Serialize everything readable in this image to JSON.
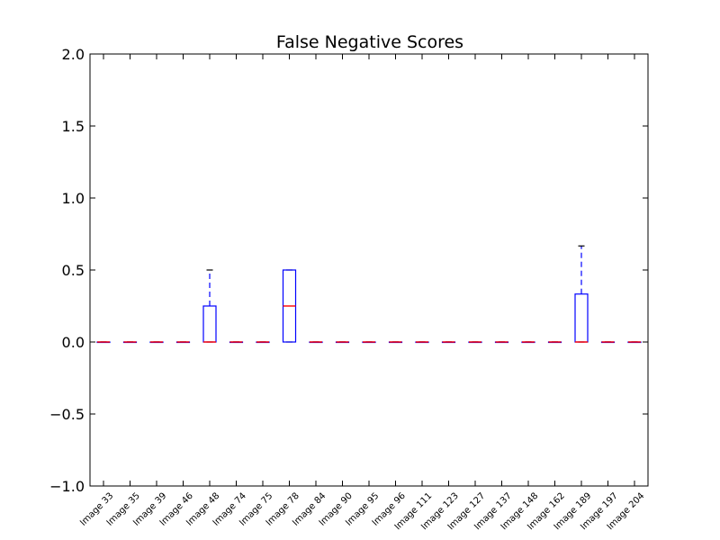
{
  "chart_data": {
    "type": "boxplot",
    "title": "False Negative Scores",
    "xlabel": "",
    "ylabel": "",
    "ylim": [
      -1.0,
      2.0
    ],
    "y_ticks": [
      -1.0,
      -0.5,
      0.0,
      0.5,
      1.0,
      1.5,
      2.0
    ],
    "y_tick_labels": [
      "−1.0",
      "−0.5",
      "0.0",
      "0.5",
      "1.0",
      "1.5",
      "2.0"
    ],
    "grid": false,
    "legend": "none",
    "categories": [
      "Image 33",
      "Image 35",
      "Image 39",
      "Image 46",
      "Image 48",
      "Image 74",
      "Image 75",
      "Image 78",
      "Image 84",
      "Image 90",
      "Image 95",
      "Image 96",
      "Image 111",
      "Image 123",
      "Image 127",
      "Image 137",
      "Image 148",
      "Image 162",
      "Image 189",
      "Image 197",
      "Image 204"
    ],
    "boxes": [
      {
        "whislo": 0,
        "q1": 0,
        "med": 0,
        "q3": 0,
        "whishi": 0
      },
      {
        "whislo": 0,
        "q1": 0,
        "med": 0,
        "q3": 0,
        "whishi": 0
      },
      {
        "whislo": 0,
        "q1": 0,
        "med": 0,
        "q3": 0,
        "whishi": 0
      },
      {
        "whislo": 0,
        "q1": 0,
        "med": 0,
        "q3": 0,
        "whishi": 0
      },
      {
        "whislo": 0,
        "q1": 0,
        "med": 0,
        "q3": 0.25,
        "whishi": 0.5
      },
      {
        "whislo": 0,
        "q1": 0,
        "med": 0,
        "q3": 0,
        "whishi": 0
      },
      {
        "whislo": 0,
        "q1": 0,
        "med": 0,
        "q3": 0,
        "whishi": 0
      },
      {
        "whislo": 0,
        "q1": 0,
        "med": 0.25,
        "q3": 0.5,
        "whishi": 0.5
      },
      {
        "whislo": 0,
        "q1": 0,
        "med": 0,
        "q3": 0,
        "whishi": 0
      },
      {
        "whislo": 0,
        "q1": 0,
        "med": 0,
        "q3": 0,
        "whishi": 0
      },
      {
        "whislo": 0,
        "q1": 0,
        "med": 0,
        "q3": 0,
        "whishi": 0
      },
      {
        "whislo": 0,
        "q1": 0,
        "med": 0,
        "q3": 0,
        "whishi": 0
      },
      {
        "whislo": 0,
        "q1": 0,
        "med": 0,
        "q3": 0,
        "whishi": 0
      },
      {
        "whislo": 0,
        "q1": 0,
        "med": 0,
        "q3": 0,
        "whishi": 0
      },
      {
        "whislo": 0,
        "q1": 0,
        "med": 0,
        "q3": 0,
        "whishi": 0
      },
      {
        "whislo": 0,
        "q1": 0,
        "med": 0,
        "q3": 0,
        "whishi": 0
      },
      {
        "whislo": 0,
        "q1": 0,
        "med": 0,
        "q3": 0,
        "whishi": 0
      },
      {
        "whislo": 0,
        "q1": 0,
        "med": 0,
        "q3": 0,
        "whishi": 0
      },
      {
        "whislo": 0,
        "q1": 0,
        "med": 0,
        "q3": 0.333,
        "whishi": 0.667
      },
      {
        "whislo": 0,
        "q1": 0,
        "med": 0,
        "q3": 0,
        "whishi": 0
      },
      {
        "whislo": 0,
        "q1": 0,
        "med": 0,
        "q3": 0,
        "whishi": 0
      }
    ],
    "colors": {
      "box": "#0000ff",
      "whisker": "#0000ff",
      "median": "#ff0000",
      "axes": "#000000"
    }
  }
}
